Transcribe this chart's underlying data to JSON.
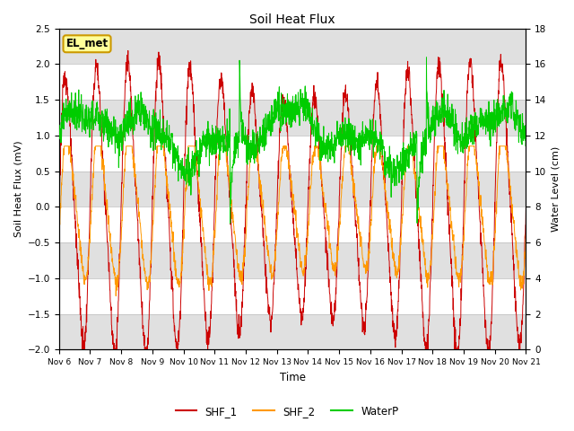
{
  "title": "Soil Heat Flux",
  "xlabel": "Time",
  "ylabel_left": "Soil Heat Flux (mV)",
  "ylabel_right": "Water Level (cm)",
  "ylim_left": [
    -2.0,
    2.5
  ],
  "ylim_right": [
    0,
    18
  ],
  "yticks_left": [
    -2.0,
    -1.5,
    -1.0,
    -0.5,
    0.0,
    0.5,
    1.0,
    1.5,
    2.0,
    2.5
  ],
  "yticks_right": [
    0,
    2,
    4,
    6,
    8,
    10,
    12,
    14,
    16,
    18
  ],
  "xtick_labels": [
    "Nov 6",
    "Nov 7",
    "Nov 8",
    "Nov 9",
    "Nov 10",
    "Nov 11",
    "Nov 12",
    "Nov 13",
    "Nov 14",
    "Nov 15",
    "Nov 16",
    "Nov 17",
    "Nov 18",
    "Nov 19",
    "Nov 20",
    "Nov 21"
  ],
  "shf1_color": "#cc0000",
  "shf2_color": "#ff9900",
  "waterp_color": "#00cc00",
  "legend_labels": [
    "SHF_1",
    "SHF_2",
    "WaterP"
  ],
  "annotation_text": "EL_met",
  "annotation_bg": "#ffff99",
  "annotation_border": "#cc9900",
  "bg_band_color": "#e0e0e0",
  "num_points": 2000,
  "days": 15
}
